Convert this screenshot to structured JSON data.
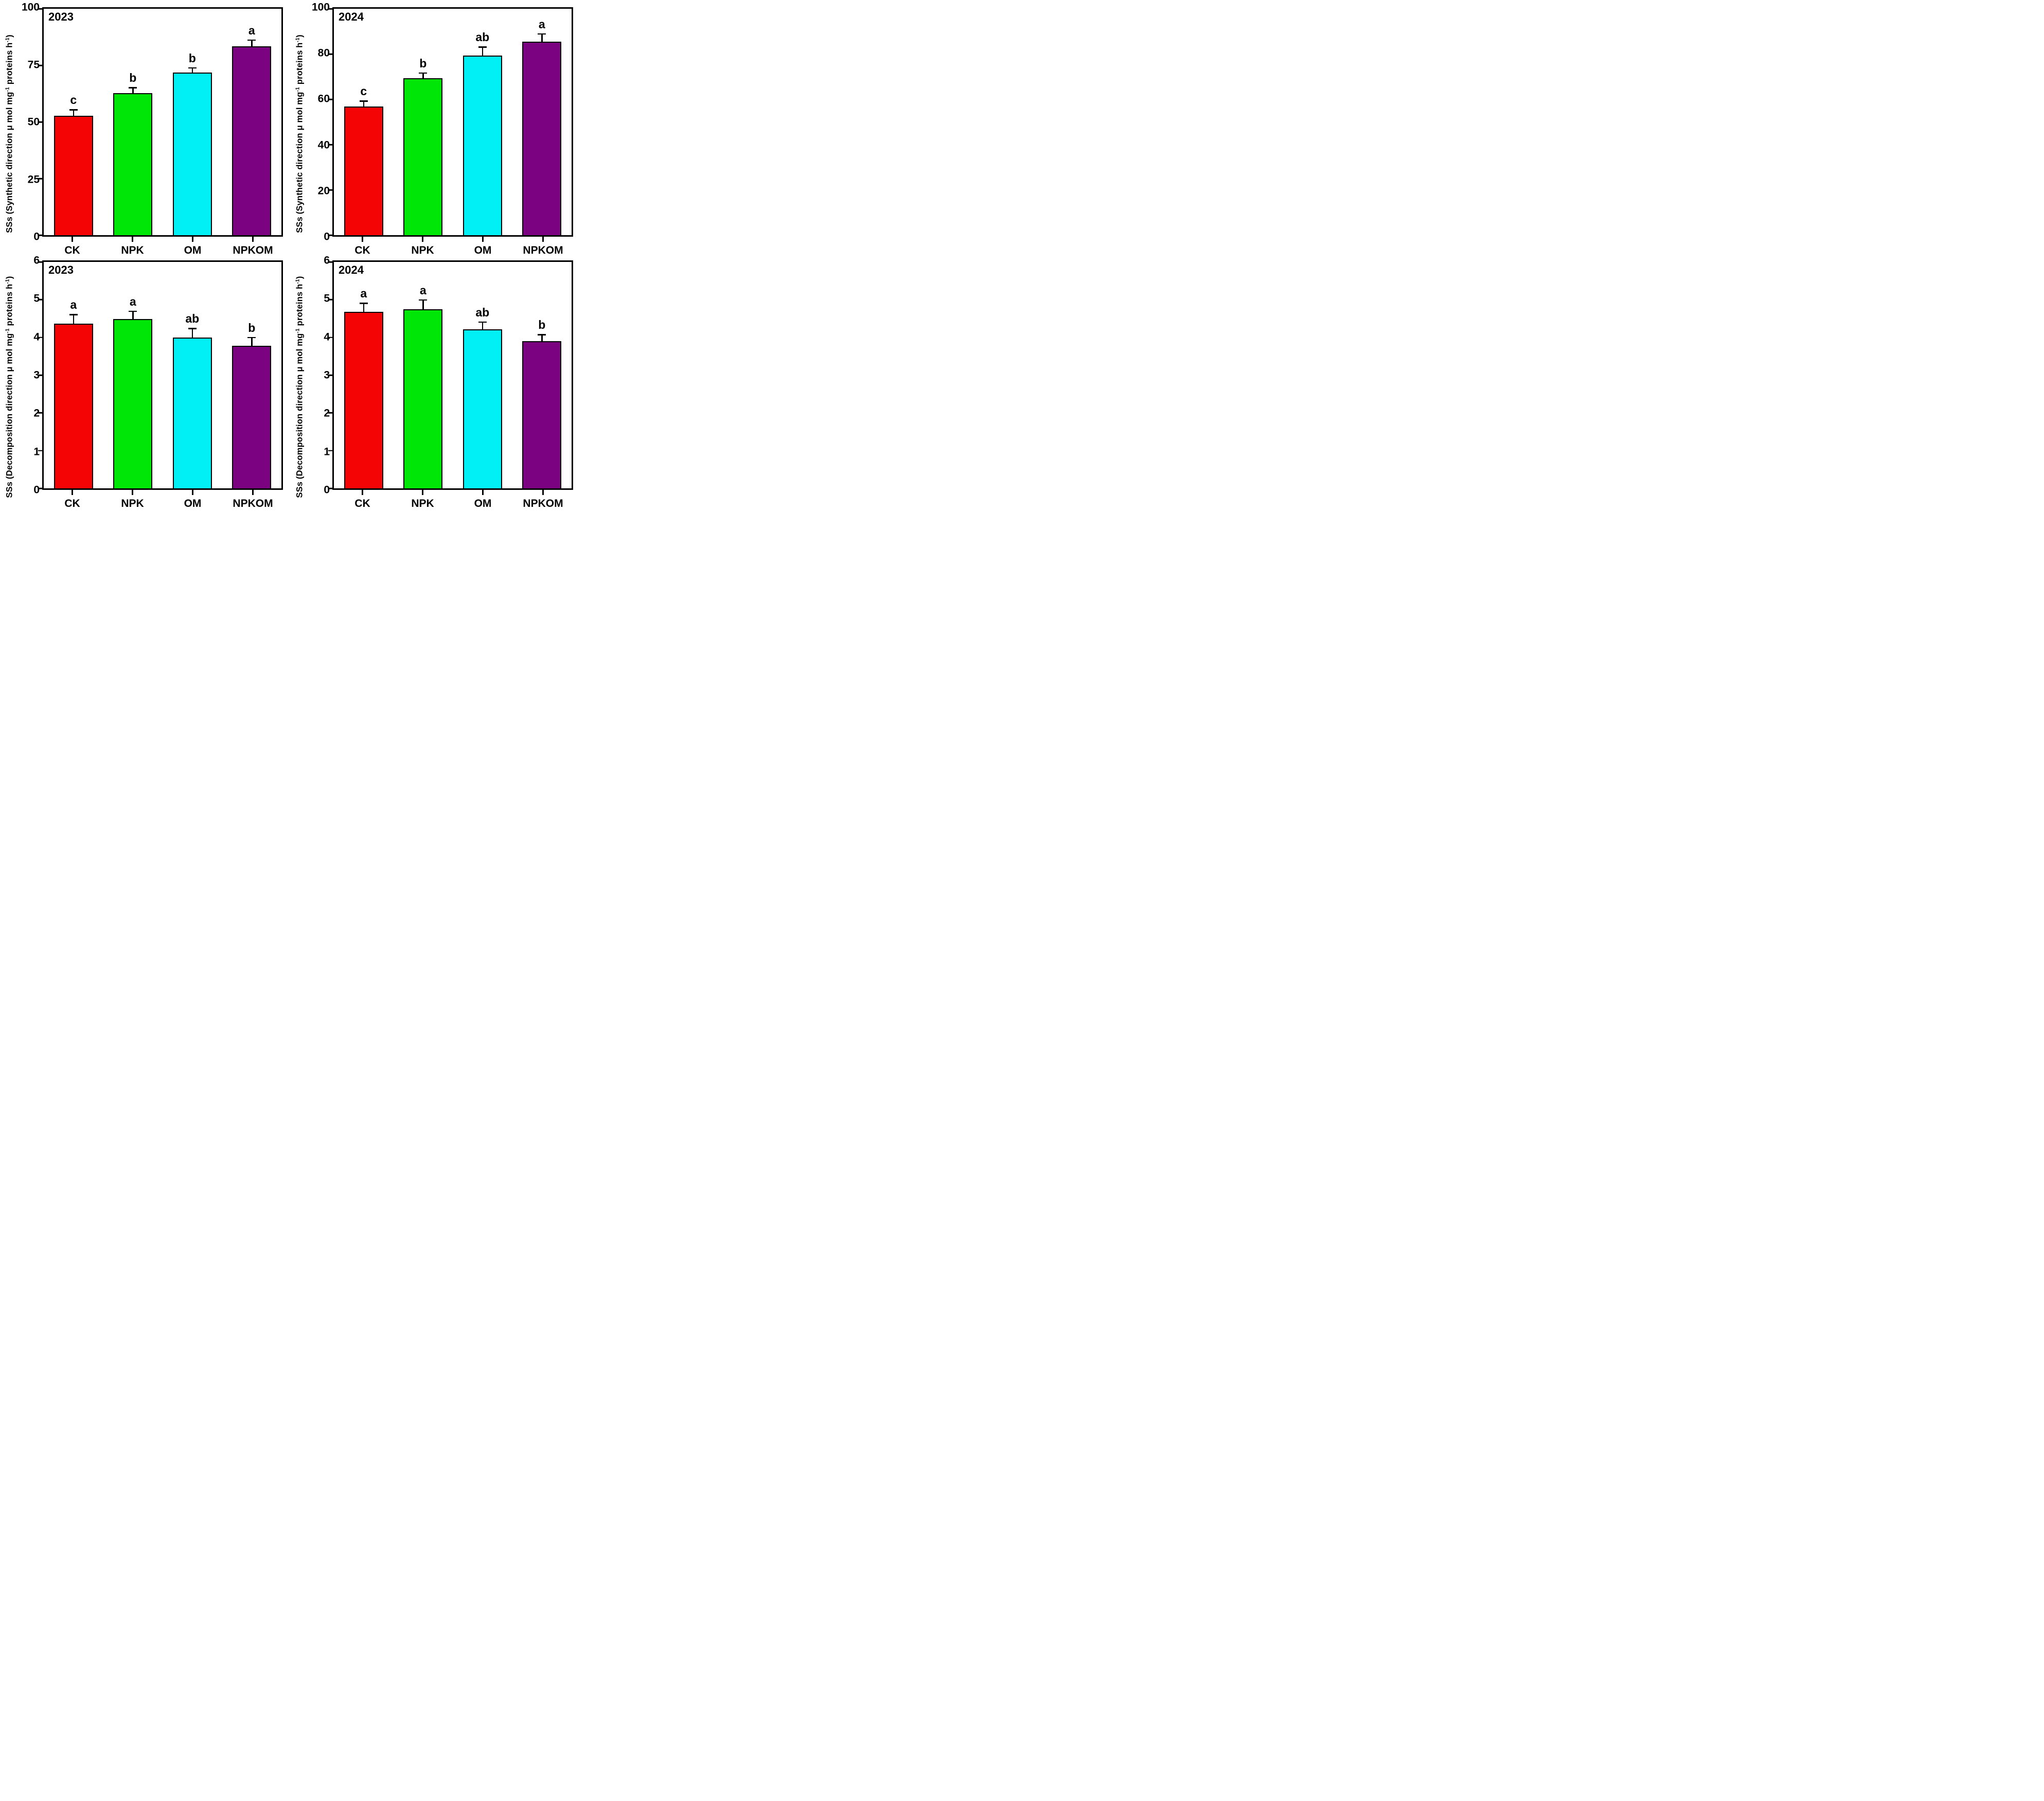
{
  "chart_data": [
    {
      "type": "bar",
      "title": "2023",
      "ylabel": "SSs (Synthetic direction μ mol mg⁻¹ proteins h⁻¹)",
      "ylabel_segments": [
        {
          "text": "SSs (Synthetic direction μ mol mg"
        },
        {
          "text": "-1",
          "sup": true
        },
        {
          "text": " proteins h"
        },
        {
          "text": "-1",
          "sup": true
        },
        {
          "text": ")"
        }
      ],
      "categories": [
        "CK",
        "NPK",
        "OM",
        "NPKOM"
      ],
      "values": [
        52.8,
        62.8,
        71.9,
        83.3
      ],
      "errors": [
        2.8,
        2.6,
        2.3,
        3.1
      ],
      "sig_letters": [
        "c",
        "b",
        "b",
        "a"
      ],
      "bar_colors": [
        "#f40404",
        "#00e606",
        "#00f0f5",
        "#7b0281"
      ],
      "ylim": [
        0,
        100
      ],
      "yticks": [
        0,
        25,
        50,
        75,
        100
      ],
      "grid": false,
      "legend": "none"
    },
    {
      "type": "bar",
      "title": "2024",
      "ylabel": "SSs (Synthetic direction μ mol mg⁻¹ proteins h⁻¹)",
      "ylabel_segments": [
        {
          "text": "SSs (Synthetic direction μ mol mg"
        },
        {
          "text": "-1",
          "sup": true
        },
        {
          "text": " proteins h"
        },
        {
          "text": "-1",
          "sup": true
        },
        {
          "text": ")"
        }
      ],
      "categories": [
        "CK",
        "NPK",
        "OM",
        "NPKOM"
      ],
      "values": [
        56.9,
        69.4,
        79.4,
        85.4
      ],
      "errors": [
        2.6,
        2.5,
        3.9,
        3.7
      ],
      "sig_letters": [
        "c",
        "b",
        "ab",
        "a"
      ],
      "bar_colors": [
        "#f40404",
        "#00e606",
        "#00f0f5",
        "#7b0281"
      ],
      "ylim": [
        0,
        100
      ],
      "yticks": [
        0,
        20,
        40,
        60,
        80,
        100
      ],
      "grid": false,
      "legend": "none"
    },
    {
      "type": "bar",
      "title": "2023",
      "ylabel": "SSs (Decomposition direction μ mol mg⁻¹ proteins h⁻¹)",
      "ylabel_segments": [
        {
          "text": "SSs (Decomposition direction μ mol mg"
        },
        {
          "text": "-1",
          "sup": true
        },
        {
          "text": " proteins h"
        },
        {
          "text": "-1",
          "sup": true
        },
        {
          "text": ")"
        }
      ],
      "categories": [
        "CK",
        "NPK",
        "OM",
        "NPKOM"
      ],
      "values": [
        4.36,
        4.48,
        4.0,
        3.78
      ],
      "errors": [
        0.26,
        0.23,
        0.25,
        0.23
      ],
      "sig_letters": [
        "a",
        "a",
        "ab",
        "b"
      ],
      "bar_colors": [
        "#f40404",
        "#00e606",
        "#00f0f5",
        "#7b0281"
      ],
      "ylim": [
        0,
        6
      ],
      "yticks": [
        0,
        1,
        2,
        3,
        4,
        5,
        6
      ],
      "grid": false,
      "legend": "none"
    },
    {
      "type": "bar",
      "title": "2024",
      "ylabel": "SSs (Decomposition direction μ mol mg⁻¹ proteins h⁻¹)",
      "ylabel_segments": [
        {
          "text": "SSs (Decomposition direction μ mol mg"
        },
        {
          "text": "-1",
          "sup": true
        },
        {
          "text": " proteins h"
        },
        {
          "text": "-1",
          "sup": true
        },
        {
          "text": ")"
        }
      ],
      "categories": [
        "CK",
        "NPK",
        "OM",
        "NPKOM"
      ],
      "values": [
        4.68,
        4.74,
        4.22,
        3.9
      ],
      "errors": [
        0.24,
        0.27,
        0.2,
        0.19
      ],
      "sig_letters": [
        "a",
        "a",
        "ab",
        "b"
      ],
      "bar_colors": [
        "#f40404",
        "#00e606",
        "#00f0f5",
        "#7b0281"
      ],
      "ylim": [
        0,
        6
      ],
      "yticks": [
        0,
        1,
        2,
        3,
        4,
        5,
        6
      ],
      "grid": false,
      "legend": "none"
    }
  ]
}
